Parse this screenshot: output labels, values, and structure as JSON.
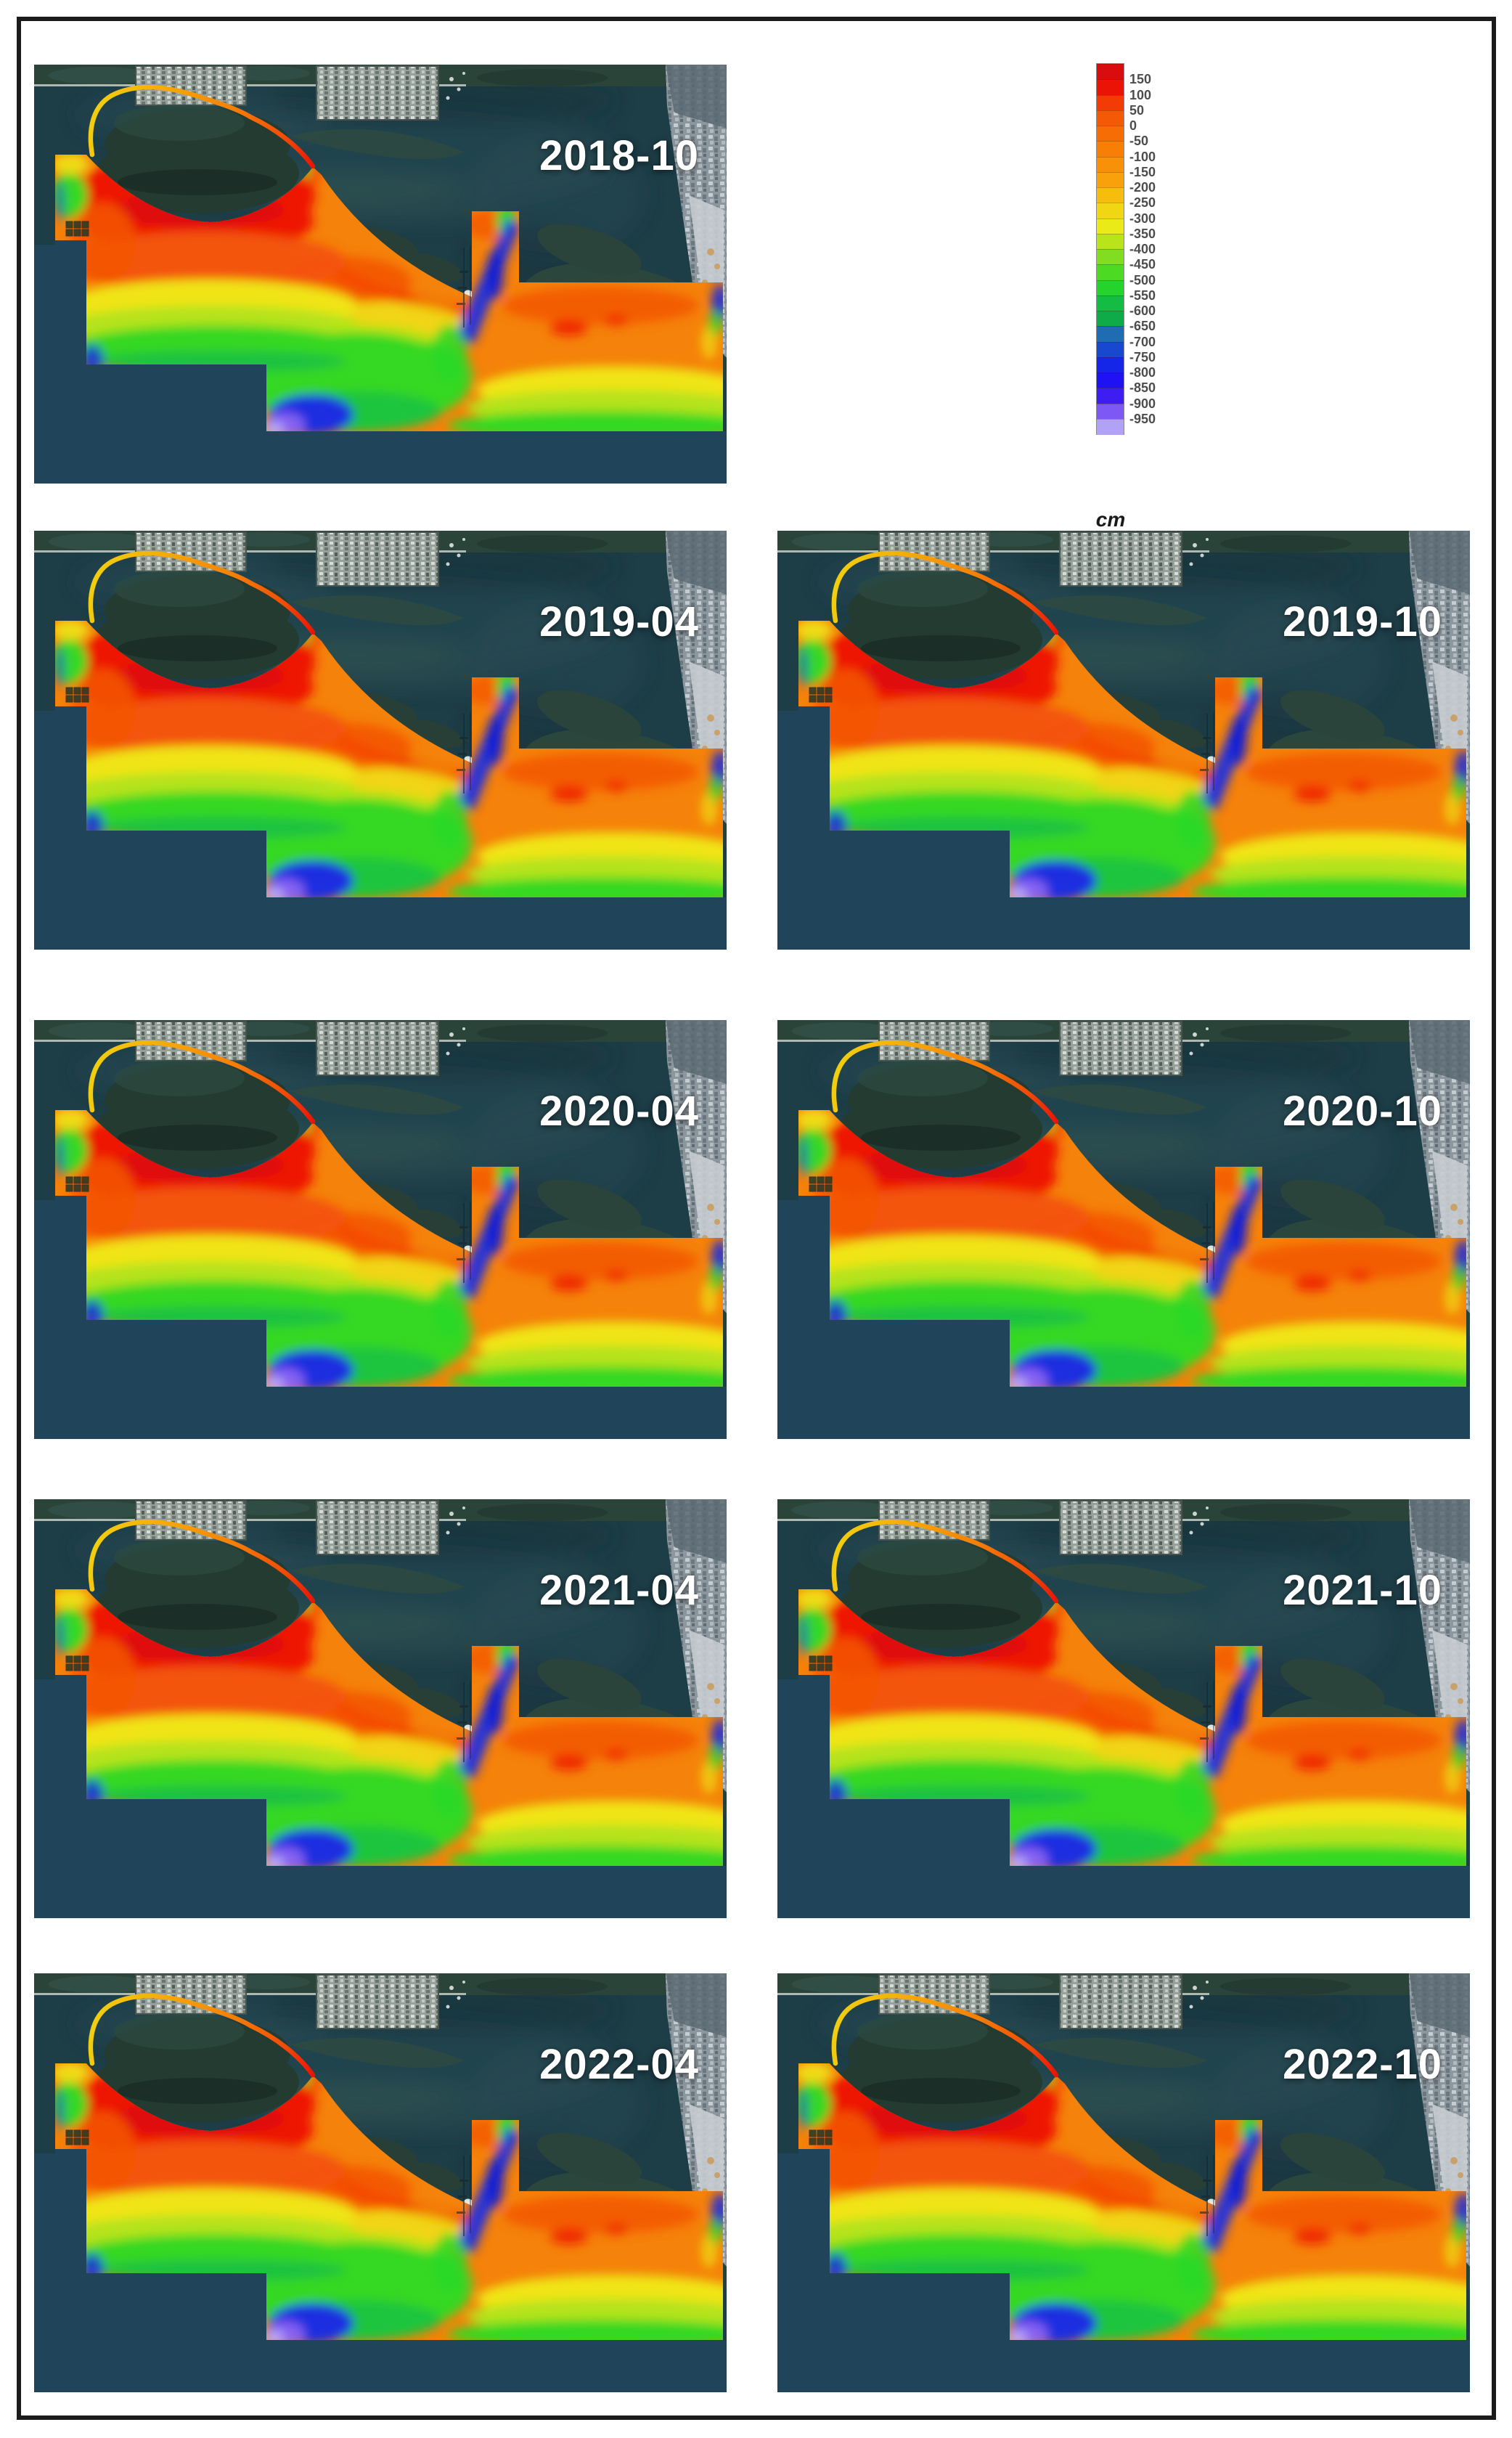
{
  "panels": [
    {
      "date": "2018-10"
    },
    {
      "date": "2019-04"
    },
    {
      "date": "2019-10"
    },
    {
      "date": "2020-04"
    },
    {
      "date": "2020-10"
    },
    {
      "date": "2021-04"
    },
    {
      "date": "2021-10"
    },
    {
      "date": "2022-04"
    },
    {
      "date": "2022-10"
    }
  ],
  "legend": {
    "unit": "cm",
    "tick_labels": [
      "150",
      "100",
      "50",
      "0",
      "-50",
      "-100",
      "-150",
      "-200",
      "-250",
      "-300",
      "-350",
      "-400",
      "-450",
      "-500",
      "-550",
      "-600",
      "-650",
      "-700",
      "-750",
      "-800",
      "-850",
      "-900",
      "-950"
    ],
    "band_colors": [
      "#d90d0d",
      "#ea1306",
      "#f23b05",
      "#f45a05",
      "#f66d05",
      "#f77f06",
      "#f89008",
      "#f9a10b",
      "#f6bd0e",
      "#f1d713",
      "#e9ea17",
      "#b9e31b",
      "#82dc1f",
      "#4cda22",
      "#24d32c",
      "#13bc42",
      "#10ab49",
      "#1e6cb2",
      "#1848d0",
      "#1526e8",
      "#1e11f4",
      "#3d1df2",
      "#7e58f5"
    ],
    "extra_bottom_color": "#b2a2f7"
  },
  "map_colors": {
    "water": "#1d3d47",
    "deep_navy_water": "#20455a",
    "shallow_red": "#ee1205",
    "orange": "#f5820a",
    "yellow": "#f0e414",
    "green": "#35d824",
    "channel_blue": "#1b2ee0",
    "deep_violet": "#8a64f2",
    "sand": "#e8ebe6"
  }
}
